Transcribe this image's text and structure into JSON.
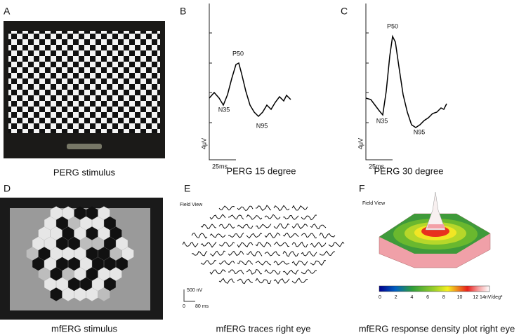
{
  "panels": [
    {
      "letter": "A",
      "caption": "PERG stimulus"
    },
    {
      "letter": "B",
      "caption": "PERG 15 degree",
      "peaks": [
        "P50",
        "N35",
        "N95"
      ],
      "y_scale": "4μV",
      "x_scale": "25ms"
    },
    {
      "letter": "C",
      "caption": "PERG 30 degree",
      "peaks": [
        "P50",
        "N35",
        "N95"
      ],
      "y_scale": "4μV",
      "x_scale": "25ms"
    },
    {
      "letter": "D",
      "caption": "mfERG stimulus"
    },
    {
      "letter": "E",
      "caption": "mfERG traces right eye",
      "view": "Field View",
      "y_scale": "500 nV",
      "x_scale_start": "0",
      "x_scale": "80 ms"
    },
    {
      "letter": "F",
      "caption": "mfERG response density plot right eye",
      "view": "Field View",
      "colorbar": {
        "ticks": [
          0,
          2,
          4,
          6,
          8,
          10,
          12
        ],
        "unit_label": "14nV/deg²"
      }
    }
  ]
}
